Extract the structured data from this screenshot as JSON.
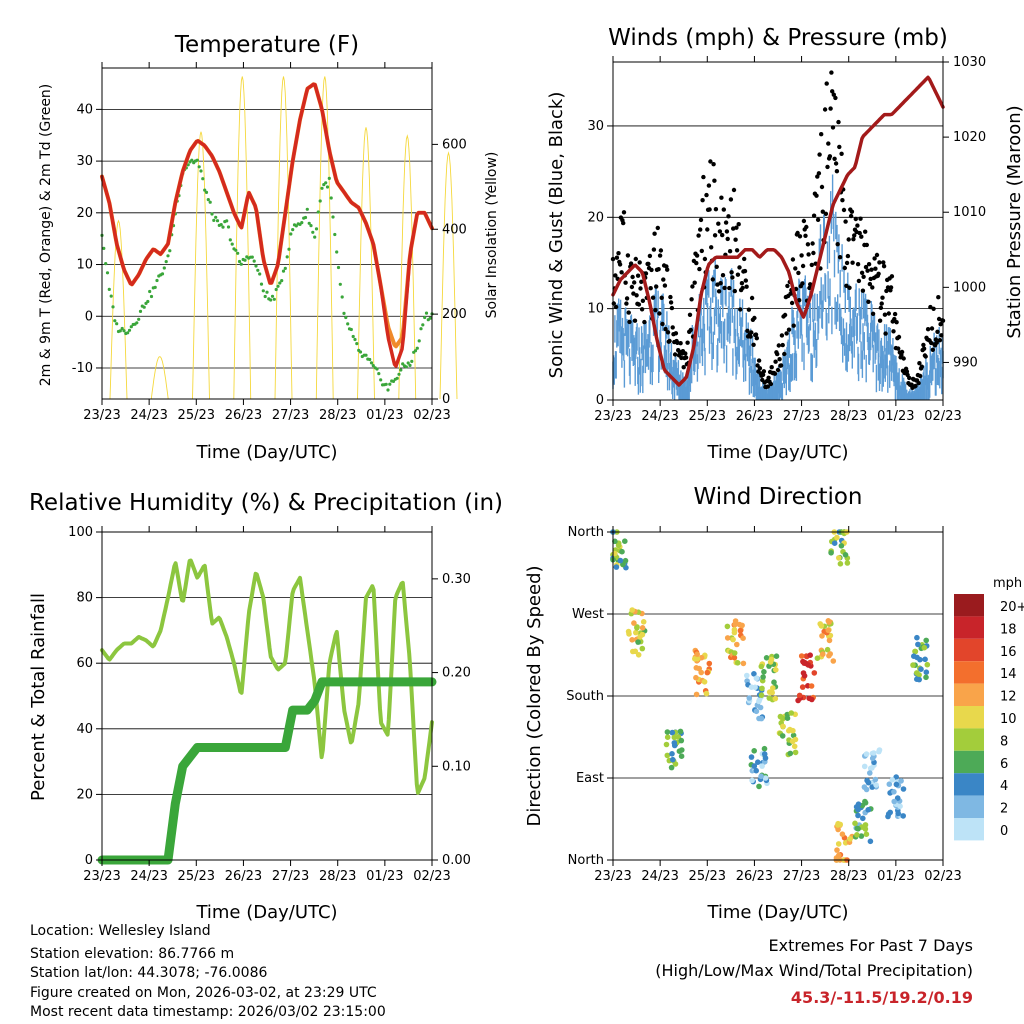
{
  "chart_data": [
    {
      "type": "line",
      "title": "Temperature (F)",
      "xlabel": "Time (Day/UTC)",
      "ylabel": "2m & 9m T (Red, Orange) & 2m Td (Green)",
      "ylabel_right": "Solar Insolation (Yellow)",
      "x_ticks": [
        "23/23",
        "24/23",
        "25/23",
        "26/23",
        "27/23",
        "28/23",
        "01/23",
        "02/23"
      ],
      "ylim": [
        -16,
        48
      ],
      "y_ticks": [
        -10,
        0,
        10,
        20,
        30,
        40
      ],
      "ylim_right": [
        0,
        780
      ],
      "y_ticks_right": [
        0,
        200,
        400,
        600
      ],
      "series": [
        {
          "name": "2m T",
          "color": "#d42a1e",
          "values": [
            27,
            22,
            14,
            9,
            6,
            8,
            11,
            13,
            12,
            14,
            22,
            28,
            32,
            34,
            33,
            31,
            28,
            24,
            20,
            17,
            24,
            21,
            11,
            6,
            10,
            20,
            30,
            38,
            44,
            45,
            40,
            32,
            26,
            24,
            22,
            21,
            18,
            14,
            6,
            -4,
            -10,
            -6,
            12,
            20,
            20,
            17
          ]
        },
        {
          "name": "9m T",
          "color": "#f08a2a",
          "values": [
            27,
            22,
            14,
            9,
            6,
            8,
            11,
            13,
            12,
            14,
            22,
            28,
            32,
            34,
            33,
            31,
            28,
            24,
            20,
            17,
            24,
            21,
            11,
            6,
            10,
            20,
            30,
            38,
            44,
            45,
            40,
            32,
            26,
            24,
            22,
            21,
            18,
            14,
            6,
            -2,
            -6,
            -4,
            12,
            20,
            20,
            17
          ]
        },
        {
          "name": "2m Td",
          "color": "#3aa63a",
          "values": [
            16,
            5,
            -2,
            -3,
            -2,
            0,
            3,
            5,
            8,
            11,
            20,
            28,
            30,
            30,
            25,
            20,
            17,
            18,
            13,
            10,
            12,
            10,
            5,
            3,
            5,
            10,
            17,
            18,
            20,
            15,
            25,
            26,
            12,
            0,
            -3,
            -7,
            -8,
            -10,
            -12,
            -14,
            -12,
            -10,
            -9,
            -6,
            0,
            0
          ]
        },
        {
          "name": "Solar Insolation",
          "color": "#f5d83c",
          "axis": "right",
          "daily_peak": [
            420,
            100,
            630,
            760,
            760,
            760,
            640,
            620,
            580
          ]
        }
      ]
    },
    {
      "type": "scatter",
      "title": "Winds (mph) & Pressure (mb)",
      "xlabel": "Time (Day/UTC)",
      "ylabel": "Sonic Wind & Gust (Blue, Black)",
      "ylabel_right": "Station Pressure (Maroon)",
      "x_ticks": [
        "23/23",
        "24/23",
        "25/23",
        "26/23",
        "27/23",
        "28/23",
        "01/23",
        "02/23"
      ],
      "ylim": [
        0,
        37
      ],
      "y_ticks": [
        0,
        10,
        20,
        30
      ],
      "ylim_right": [
        985,
        1030
      ],
      "y_ticks_right": [
        990,
        1000,
        1010,
        1020,
        1030
      ],
      "series": [
        {
          "name": "Sonic Wind",
          "color": "#5b9bd5",
          "values": [
            7,
            8,
            7,
            6,
            6,
            8,
            9,
            8,
            5,
            3,
            2,
            7,
            10,
            10,
            11,
            10,
            11,
            9,
            7,
            5,
            2,
            1,
            2,
            3,
            6,
            9,
            10,
            8,
            13,
            16,
            18,
            14,
            10,
            9,
            9,
            8,
            6,
            6,
            6,
            3,
            1,
            1,
            2,
            4,
            6,
            5
          ]
        },
        {
          "name": "Gust",
          "color": "#000000",
          "values": [
            14,
            20,
            16,
            14,
            13,
            14,
            17,
            14,
            10,
            6,
            5,
            13,
            20,
            24,
            22,
            20,
            22,
            19,
            13,
            11,
            4,
            2,
            4,
            7,
            12,
            16,
            18,
            15,
            24,
            30,
            32,
            26,
            20,
            19,
            18,
            16,
            14,
            13,
            12,
            6,
            3,
            2,
            4,
            8,
            11,
            10
          ]
        },
        {
          "name": "Station Pressure",
          "color": "#a31a1a",
          "axis": "right",
          "values": [
            999,
            1001,
            1002,
            1003,
            1002,
            998,
            993,
            989,
            988,
            987,
            988,
            992,
            999,
            1003,
            1004,
            1004,
            1004,
            1004,
            1005,
            1005,
            1004,
            1005,
            1005,
            1004,
            1002,
            998,
            996,
            999,
            1003,
            1007,
            1011,
            1013,
            1015,
            1016,
            1020,
            1021,
            1022,
            1023,
            1023,
            1024,
            1025,
            1026,
            1027,
            1028,
            1026,
            1024
          ]
        }
      ]
    },
    {
      "type": "line",
      "title": "Relative Humidity (%) & Precipitation (in)",
      "xlabel": "Time (Day/UTC)",
      "ylabel": "Percent & Total Rainfall",
      "x_ticks": [
        "23/23",
        "24/23",
        "25/23",
        "26/23",
        "27/23",
        "28/23",
        "01/23",
        "02/23"
      ],
      "ylim": [
        0,
        100
      ],
      "y_ticks": [
        0,
        20,
        40,
        60,
        80,
        100
      ],
      "ylim_right": [
        0,
        0.35
      ],
      "y_ticks_right": [
        "0.00",
        "0.10",
        "0.20",
        "0.30"
      ],
      "series": [
        {
          "name": "Relative Humidity",
          "color": "#8cc63f",
          "values": [
            64,
            61,
            64,
            66,
            66,
            68,
            67,
            65,
            70,
            80,
            91,
            78,
            92,
            86,
            90,
            72,
            74,
            68,
            60,
            50,
            75,
            88,
            80,
            62,
            58,
            60,
            82,
            86,
            70,
            54,
            30,
            60,
            70,
            46,
            35,
            48,
            80,
            84,
            42,
            38,
            80,
            85,
            60,
            20,
            25,
            42
          ]
        },
        {
          "name": "Total Precipitation",
          "color": "#3aa63a",
          "axis": "right",
          "values": [
            0,
            0,
            0,
            0,
            0,
            0,
            0,
            0,
            0,
            0,
            0.06,
            0.1,
            0.11,
            0.12,
            0.12,
            0.12,
            0.12,
            0.12,
            0.12,
            0.12,
            0.12,
            0.12,
            0.12,
            0.12,
            0.12,
            0.12,
            0.16,
            0.16,
            0.16,
            0.17,
            0.19,
            0.19,
            0.19,
            0.19,
            0.19,
            0.19,
            0.19,
            0.19,
            0.19,
            0.19,
            0.19,
            0.19,
            0.19,
            0.19,
            0.19,
            0.19
          ]
        }
      ]
    },
    {
      "type": "scatter",
      "title": "Wind Direction",
      "xlabel": "Time (Day/UTC)",
      "ylabel": "Direction (Colored By Speed)",
      "x_ticks": [
        "23/23",
        "24/23",
        "25/23",
        "26/23",
        "27/23",
        "28/23",
        "01/23",
        "02/23"
      ],
      "y_ticks": [
        "North",
        "East",
        "South",
        "West",
        "North"
      ],
      "ylim": [
        0,
        360
      ],
      "colorbar": {
        "title": "mph",
        "labels": [
          "20+",
          "18",
          "16",
          "14",
          "12",
          "10",
          "8",
          "6",
          "4",
          "2",
          "0"
        ],
        "colors": [
          "#9a1b1e",
          "#c8242a",
          "#e2452b",
          "#f36f2d",
          "#f9a44a",
          "#e8d84c",
          "#a3cd3b",
          "#4daa57",
          "#3a86c6",
          "#7fb8e3",
          "#bde3f7"
        ]
      },
      "clusters": [
        {
          "day": 0.1,
          "dir": 345,
          "speed": 7
        },
        {
          "day": 0.5,
          "dir": 250,
          "speed": 9
        },
        {
          "day": 1.3,
          "dir": 120,
          "speed": 6
        },
        {
          "day": 1.9,
          "dir": 205,
          "speed": 12
        },
        {
          "day": 2.6,
          "dir": 240,
          "speed": 11
        },
        {
          "day": 3.0,
          "dir": 180,
          "speed": 2
        },
        {
          "day": 3.1,
          "dir": 100,
          "speed": 3
        },
        {
          "day": 3.3,
          "dir": 200,
          "speed": 8
        },
        {
          "day": 3.7,
          "dir": 140,
          "speed": 8
        },
        {
          "day": 4.1,
          "dir": 200,
          "speed": 16
        },
        {
          "day": 4.5,
          "dir": 240,
          "speed": 11
        },
        {
          "day": 4.8,
          "dir": 350,
          "speed": 7
        },
        {
          "day": 4.9,
          "dir": 15,
          "speed": 11
        },
        {
          "day": 5.3,
          "dir": 40,
          "speed": 5
        },
        {
          "day": 5.5,
          "dir": 100,
          "speed": 2
        },
        {
          "day": 6.0,
          "dir": 70,
          "speed": 2
        },
        {
          "day": 6.5,
          "dir": 220,
          "speed": 6
        }
      ]
    }
  ],
  "info": {
    "location": "Location: Wellesley Island",
    "elevation": "Station elevation: 86.7766 m",
    "latlon": "Station lat/lon: 44.3078; -76.0086",
    "created": "Figure created on Mon, 2026-03-02, at 23:29 UTC",
    "recent": "Most recent data timestamp: 2026/03/02 23:15:00"
  },
  "extremes": {
    "title": "Extremes For Past 7 Days",
    "subtitle": "(High/Low/Max Wind/Total Precipitation)",
    "values": "45.3/-11.5/19.2/0.19"
  }
}
